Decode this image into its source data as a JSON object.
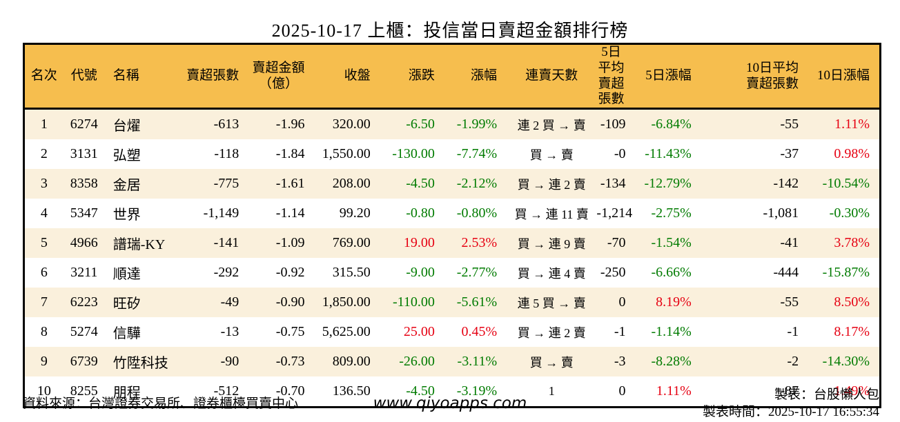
{
  "title": "2025-10-17 上櫃：投信當日賣超金額排行榜",
  "colors": {
    "green": "#007B00",
    "red": "#E60012",
    "header_bg": "#F6BE4E",
    "row_alt_bg": "#FAF0DC",
    "border": "#000000"
  },
  "table": {
    "columns": [
      {
        "key": "rank",
        "label": "名次"
      },
      {
        "key": "code",
        "label": "代號"
      },
      {
        "key": "name",
        "label": "名稱"
      },
      {
        "key": "sell_qty",
        "label": "賣超張數"
      },
      {
        "key": "sell_amt",
        "label": "賣超金額\n（億）"
      },
      {
        "key": "close",
        "label": "收盤"
      },
      {
        "key": "change",
        "label": "漲跌"
      },
      {
        "key": "change_pct",
        "label": "漲幅"
      },
      {
        "key": "streak",
        "label": "連賣天數"
      },
      {
        "key": "avg5",
        "label": "5日平均\n賣超張數"
      },
      {
        "key": "pct5",
        "label": "5日漲幅"
      },
      {
        "key": "avg10",
        "label": "10日平均\n賣超張數"
      },
      {
        "key": "pct10",
        "label": "10日漲幅"
      }
    ],
    "rows": [
      {
        "cells": [
          "1",
          "6274",
          "台燿",
          "-613",
          "-1.96",
          "320.00",
          "-6.50",
          "-1.99%",
          "連 2 買 → 賣",
          "-109",
          "-6.84%",
          "-55",
          "1.11%"
        ],
        "styles": [
          null,
          null,
          null,
          null,
          null,
          null,
          "green",
          "green",
          null,
          null,
          "green",
          null,
          "red"
        ]
      },
      {
        "cells": [
          "2",
          "3131",
          "弘塑",
          "-118",
          "-1.84",
          "1,550.00",
          "-130.00",
          "-7.74%",
          "買 → 賣",
          "-0",
          "-11.43%",
          "-37",
          "0.98%"
        ],
        "styles": [
          null,
          null,
          null,
          null,
          null,
          null,
          "green",
          "green",
          null,
          null,
          "green",
          null,
          "red"
        ]
      },
      {
        "cells": [
          "3",
          "8358",
          "金居",
          "-775",
          "-1.61",
          "208.00",
          "-4.50",
          "-2.12%",
          "買 → 連 2 賣",
          "-134",
          "-12.79%",
          "-142",
          "-10.54%"
        ],
        "styles": [
          null,
          null,
          null,
          null,
          null,
          null,
          "green",
          "green",
          null,
          null,
          "green",
          null,
          "green"
        ]
      },
      {
        "cells": [
          "4",
          "5347",
          "世界",
          "-1,149",
          "-1.14",
          "99.20",
          "-0.80",
          "-0.80%",
          "買 → 連 11 賣",
          "-1,214",
          "-2.75%",
          "-1,081",
          "-0.30%"
        ],
        "styles": [
          null,
          null,
          null,
          null,
          null,
          null,
          "green",
          "green",
          null,
          null,
          "green",
          null,
          "green"
        ]
      },
      {
        "cells": [
          "5",
          "4966",
          "譜瑞-KY",
          "-141",
          "-1.09",
          "769.00",
          "19.00",
          "2.53%",
          "買 → 連 9 賣",
          "-70",
          "-1.54%",
          "-41",
          "3.78%"
        ],
        "styles": [
          null,
          null,
          null,
          null,
          null,
          null,
          "red",
          "red",
          null,
          null,
          "green",
          null,
          "red"
        ]
      },
      {
        "cells": [
          "6",
          "3211",
          "順達",
          "-292",
          "-0.92",
          "315.50",
          "-9.00",
          "-2.77%",
          "買 → 連 4 賣",
          "-250",
          "-6.66%",
          "-444",
          "-15.87%"
        ],
        "styles": [
          null,
          null,
          null,
          null,
          null,
          null,
          "green",
          "green",
          null,
          null,
          "green",
          null,
          "green"
        ]
      },
      {
        "cells": [
          "7",
          "6223",
          "旺矽",
          "-49",
          "-0.90",
          "1,850.00",
          "-110.00",
          "-5.61%",
          "連 5 買 → 賣",
          "0",
          "8.19%",
          "-55",
          "8.50%"
        ],
        "styles": [
          null,
          null,
          null,
          null,
          null,
          null,
          "green",
          "green",
          null,
          null,
          "red",
          null,
          "red"
        ]
      },
      {
        "cells": [
          "8",
          "5274",
          "信驊",
          "-13",
          "-0.75",
          "5,625.00",
          "25.00",
          "0.45%",
          "買 → 連 2 賣",
          "-1",
          "-1.14%",
          "-1",
          "8.17%"
        ],
        "styles": [
          null,
          null,
          null,
          null,
          null,
          null,
          "red",
          "red",
          null,
          null,
          "green",
          null,
          "red"
        ]
      },
      {
        "cells": [
          "9",
          "6739",
          "竹陞科技",
          "-90",
          "-0.73",
          "809.00",
          "-26.00",
          "-3.11%",
          "買 → 賣",
          "-3",
          "-8.28%",
          "-2",
          "-14.30%"
        ],
        "styles": [
          null,
          null,
          null,
          null,
          null,
          null,
          "green",
          "green",
          null,
          null,
          "green",
          null,
          "green"
        ]
      },
      {
        "cells": [
          "10",
          "8255",
          "朋程",
          "-512",
          "-0.70",
          "136.50",
          "-4.50",
          "-3.19%",
          "1",
          "0",
          "1.11%",
          "-87",
          "1.49%"
        ],
        "styles": [
          null,
          null,
          null,
          null,
          null,
          null,
          "green",
          "green",
          null,
          null,
          "red",
          null,
          "red"
        ]
      }
    ]
  },
  "footer": {
    "source": "資料來源：台灣證券交易所、證券櫃檯買賣中心",
    "website": "www.qiyoapps.com",
    "maker": "製表：台股懶人包",
    "made_time": "製表時間：2025-10-17 16:55:34"
  }
}
